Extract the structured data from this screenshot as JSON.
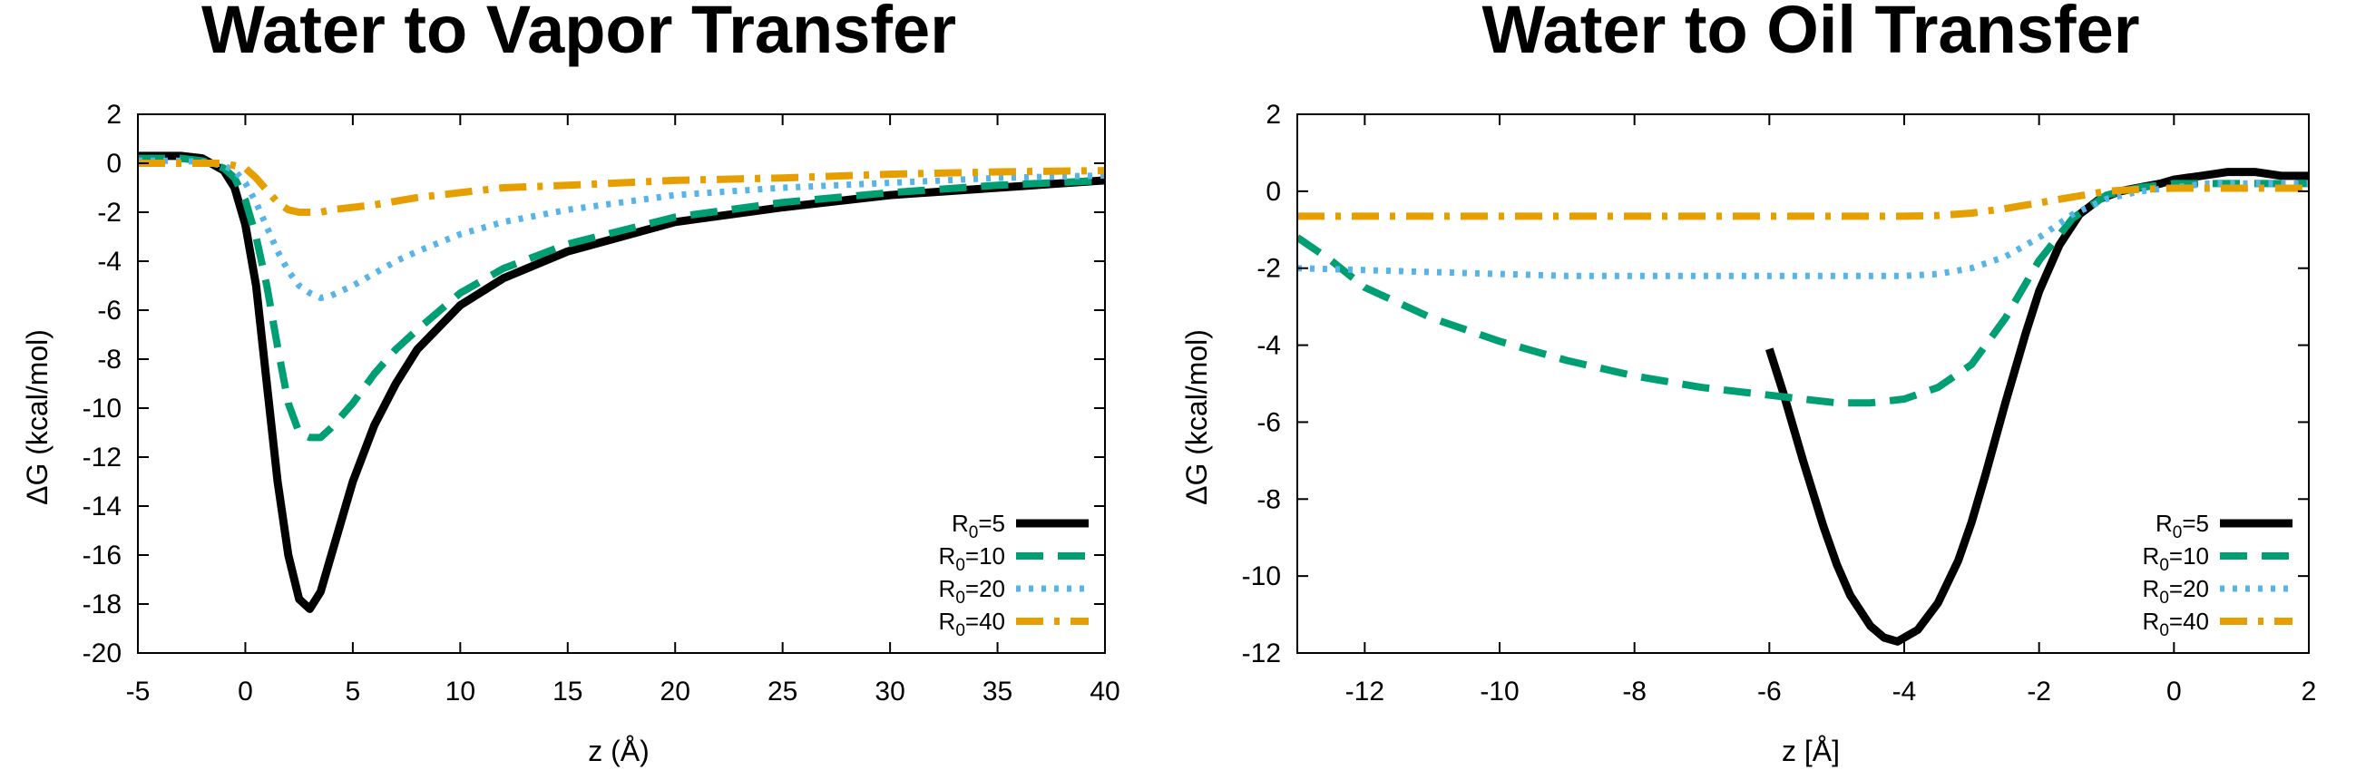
{
  "chart_data": [
    {
      "type": "line",
      "title": "Water to Vapor Transfer",
      "xlabel": "z (Å)",
      "ylabel": "ΔG (kcal/mol)",
      "xlim": [
        -5,
        40
      ],
      "ylim": [
        -20,
        2
      ],
      "xticks": [
        "-5",
        "0",
        "5",
        "10",
        "15",
        "20",
        "25",
        "30",
        "35",
        "40"
      ],
      "yticks": [
        "2",
        "0",
        "-2",
        "-4",
        "-6",
        "-8",
        "-10",
        "-12",
        "-14",
        "-16",
        "-18",
        "-20"
      ],
      "legend_position": "bottom-right",
      "grid": false,
      "series": [
        {
          "name": "R0=5",
          "subscript": "0",
          "color": "#000000",
          "dash": "solid",
          "x": [
            -5,
            -3,
            -2,
            -1,
            -0.5,
            0,
            0.5,
            1,
            1.5,
            2,
            2.5,
            3,
            3.5,
            4,
            5,
            6,
            7,
            8,
            10,
            12,
            15,
            20,
            25,
            30,
            35,
            40
          ],
          "y": [
            0.3,
            0.3,
            0.2,
            -0.3,
            -1,
            -2.5,
            -5,
            -9,
            -13,
            -16,
            -17.8,
            -18.2,
            -17.5,
            -16,
            -13,
            -10.7,
            -9,
            -7.6,
            -5.8,
            -4.7,
            -3.6,
            -2.4,
            -1.8,
            -1.3,
            -1.0,
            -0.7
          ]
        },
        {
          "name": "R0=10",
          "subscript": "0",
          "color": "#009e73",
          "dash": "dash",
          "x": [
            -5,
            -3,
            -2,
            -1,
            -0.5,
            0,
            0.5,
            1,
            1.5,
            2,
            2.5,
            3,
            3.5,
            4,
            5,
            6,
            7,
            8,
            10,
            12,
            15,
            20,
            25,
            30,
            35,
            40
          ],
          "y": [
            0.2,
            0.2,
            0.1,
            -0.2,
            -0.6,
            -1.5,
            -3,
            -5,
            -7.5,
            -9.8,
            -11,
            -11.2,
            -11.2,
            -10.8,
            -9.8,
            -8.6,
            -7.6,
            -6.8,
            -5.3,
            -4.3,
            -3.3,
            -2.2,
            -1.6,
            -1.2,
            -0.9,
            -0.7
          ]
        },
        {
          "name": "R0=20",
          "subscript": "0",
          "color": "#56b4e9",
          "dash": "dot",
          "x": [
            -5,
            -3,
            -2,
            -1,
            -0.5,
            0,
            0.5,
            1,
            1.5,
            2,
            2.5,
            3,
            3.5,
            4,
            5,
            6,
            7,
            8,
            10,
            12,
            15,
            20,
            25,
            30,
            35,
            40
          ],
          "y": [
            0.1,
            0.1,
            0.05,
            -0.1,
            -0.3,
            -0.8,
            -1.6,
            -2.6,
            -3.6,
            -4.4,
            -5.0,
            -5.3,
            -5.5,
            -5.4,
            -5.0,
            -4.5,
            -4.0,
            -3.6,
            -2.9,
            -2.4,
            -1.9,
            -1.3,
            -1.0,
            -0.8,
            -0.6,
            -0.5
          ]
        },
        {
          "name": "R0=40",
          "subscript": "0",
          "color": "#e69f00",
          "dash": "dashdot",
          "x": [
            -5,
            -3,
            -2,
            -1,
            0,
            0.5,
            1,
            1.5,
            2,
            2.5,
            3,
            3.5,
            4,
            5,
            6,
            8,
            10,
            12,
            15,
            20,
            25,
            30,
            35,
            40
          ],
          "y": [
            0,
            0,
            0,
            0,
            -0.2,
            -0.6,
            -1.1,
            -1.6,
            -1.9,
            -2.0,
            -2.0,
            -2.0,
            -1.9,
            -1.8,
            -1.7,
            -1.4,
            -1.2,
            -1.0,
            -0.9,
            -0.7,
            -0.6,
            -0.45,
            -0.35,
            -0.3
          ]
        }
      ]
    },
    {
      "type": "line",
      "title": "Water to Oil Transfer",
      "xlabel": "z [Å]",
      "ylabel": "ΔG (kcal/mol)",
      "xlim": [
        -13,
        2
      ],
      "ylim": [
        -12,
        2
      ],
      "xticks": [
        "-12",
        "-10",
        "-8",
        "-6",
        "-4",
        "-2",
        "0",
        "2"
      ],
      "yticks": [
        "2",
        "0",
        "-2",
        "-4",
        "-6",
        "-8",
        "-10",
        "-12"
      ],
      "legend_position": "bottom-right",
      "grid": false,
      "series": [
        {
          "name": "R0=5",
          "subscript": "0",
          "color": "#000000",
          "dash": "solid",
          "x": [
            -6,
            -5.8,
            -5.5,
            -5.2,
            -5.0,
            -4.8,
            -4.5,
            -4.3,
            -4.1,
            -3.8,
            -3.5,
            -3.2,
            -3.0,
            -2.8,
            -2.5,
            -2.2,
            -2.0,
            -1.7,
            -1.4,
            -1.1,
            -0.8,
            -0.5,
            -0.2,
            0,
            0.4,
            0.8,
            1.2,
            1.6,
            2.0
          ],
          "y": [
            -4.1,
            -5.2,
            -7.0,
            -8.7,
            -9.7,
            -10.5,
            -11.3,
            -11.6,
            -11.7,
            -11.4,
            -10.7,
            -9.6,
            -8.6,
            -7.4,
            -5.5,
            -3.7,
            -2.6,
            -1.4,
            -0.6,
            -0.2,
            0,
            0.1,
            0.2,
            0.3,
            0.4,
            0.5,
            0.5,
            0.4,
            0.4
          ]
        },
        {
          "name": "R0=10",
          "subscript": "0",
          "color": "#009e73",
          "dash": "dash",
          "x": [
            -13,
            -12.5,
            -12,
            -11,
            -10,
            -9,
            -8,
            -7,
            -6,
            -5.5,
            -5,
            -4.5,
            -4,
            -3.5,
            -3,
            -2.5,
            -2,
            -1.5,
            -1,
            -0.5,
            0,
            0.5,
            1,
            1.5,
            2
          ],
          "y": [
            -1.2,
            -1.8,
            -2.5,
            -3.3,
            -3.9,
            -4.4,
            -4.8,
            -5.1,
            -5.3,
            -5.4,
            -5.5,
            -5.5,
            -5.4,
            -5.1,
            -4.5,
            -3.3,
            -1.8,
            -0.7,
            -0.1,
            0.1,
            0.2,
            0.2,
            0.2,
            0.2,
            0.2
          ]
        },
        {
          "name": "R0=20",
          "subscript": "0",
          "color": "#56b4e9",
          "dash": "dot",
          "x": [
            -13,
            -12,
            -11,
            -10,
            -9,
            -8,
            -7,
            -6,
            -5,
            -4,
            -3.5,
            -3,
            -2.5,
            -2,
            -1.5,
            -1,
            -0.5,
            0,
            0.5,
            1,
            1.5,
            2
          ],
          "y": [
            -2.0,
            -2.05,
            -2.1,
            -2.15,
            -2.2,
            -2.2,
            -2.2,
            -2.2,
            -2.2,
            -2.2,
            -2.15,
            -2.0,
            -1.7,
            -1.2,
            -0.6,
            -0.2,
            0,
            0.1,
            0.2,
            0.2,
            0.2,
            0.2
          ]
        },
        {
          "name": "R0=40",
          "subscript": "0",
          "color": "#e69f00",
          "dash": "dashdot",
          "x": [
            -13,
            -12,
            -11,
            -10,
            -9,
            -8,
            -7,
            -6,
            -5,
            -4,
            -3.5,
            -3,
            -2.5,
            -2,
            -1.5,
            -1,
            -0.5,
            0,
            0.5,
            1,
            1.5,
            2
          ],
          "y": [
            -0.65,
            -0.65,
            -0.65,
            -0.65,
            -0.65,
            -0.65,
            -0.65,
            -0.65,
            -0.65,
            -0.65,
            -0.63,
            -0.57,
            -0.45,
            -0.3,
            -0.15,
            0,
            0.05,
            0.08,
            0.08,
            0.08,
            0.08,
            0.08
          ]
        }
      ]
    }
  ]
}
